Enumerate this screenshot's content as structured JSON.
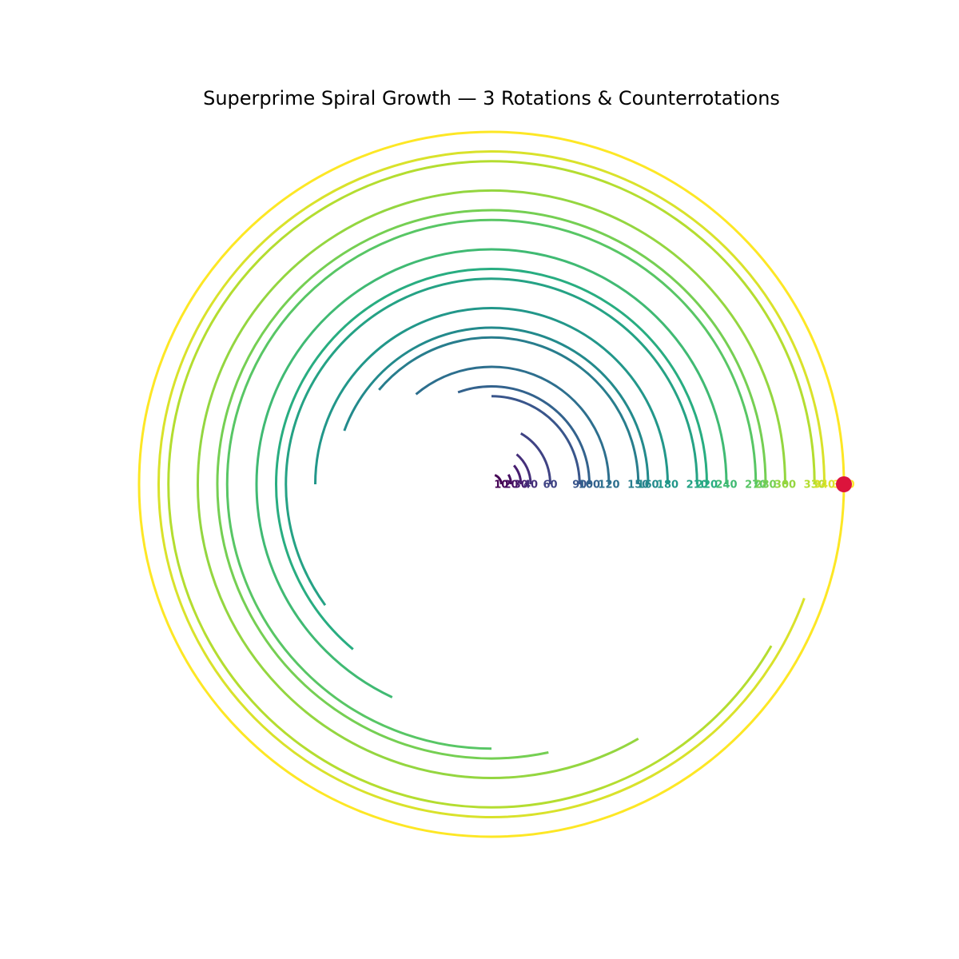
{
  "chart_data": {
    "type": "line",
    "title": "Superprime Spiral Growth — 3 Rotations & Counterrotations",
    "xlabel": "",
    "ylabel": "",
    "grid": false,
    "axes_visible": false,
    "colormap": "viridis",
    "r_max": 360,
    "series": [
      {
        "label": "10",
        "radius": 10,
        "sweep_deg": 70
      },
      {
        "label": "20",
        "radius": 20,
        "sweep_deg": 30
      },
      {
        "label": "30",
        "radius": 30,
        "sweep_deg": 40
      },
      {
        "label": "40",
        "radius": 40,
        "sweep_deg": 50
      },
      {
        "label": "60",
        "radius": 60,
        "sweep_deg": 60
      },
      {
        "label": "90",
        "radius": 90,
        "sweep_deg": 90
      },
      {
        "label": "100",
        "radius": 100,
        "sweep_deg": 110
      },
      {
        "label": "120",
        "radius": 120,
        "sweep_deg": 130
      },
      {
        "label": "150",
        "radius": 150,
        "sweep_deg": 140
      },
      {
        "label": "160",
        "radius": 160,
        "sweep_deg": 160
      },
      {
        "label": "180",
        "radius": 180,
        "sweep_deg": 180
      },
      {
        "label": "210",
        "radius": 210,
        "sweep_deg": 216
      },
      {
        "label": "220",
        "radius": 220,
        "sweep_deg": 230
      },
      {
        "label": "240",
        "radius": 240,
        "sweep_deg": 245
      },
      {
        "label": "270",
        "radius": 270,
        "sweep_deg": 270
      },
      {
        "label": "280",
        "radius": 280,
        "sweep_deg": 282
      },
      {
        "label": "300",
        "radius": 300,
        "sweep_deg": 300
      },
      {
        "label": "330",
        "radius": 330,
        "sweep_deg": 330
      },
      {
        "label": "340",
        "radius": 340,
        "sweep_deg": 340
      },
      {
        "label": "360",
        "radius": 360,
        "sweep_deg": 360
      }
    ],
    "marker": {
      "radius": 360,
      "angle_deg": 0,
      "color": "#dc143c"
    }
  }
}
